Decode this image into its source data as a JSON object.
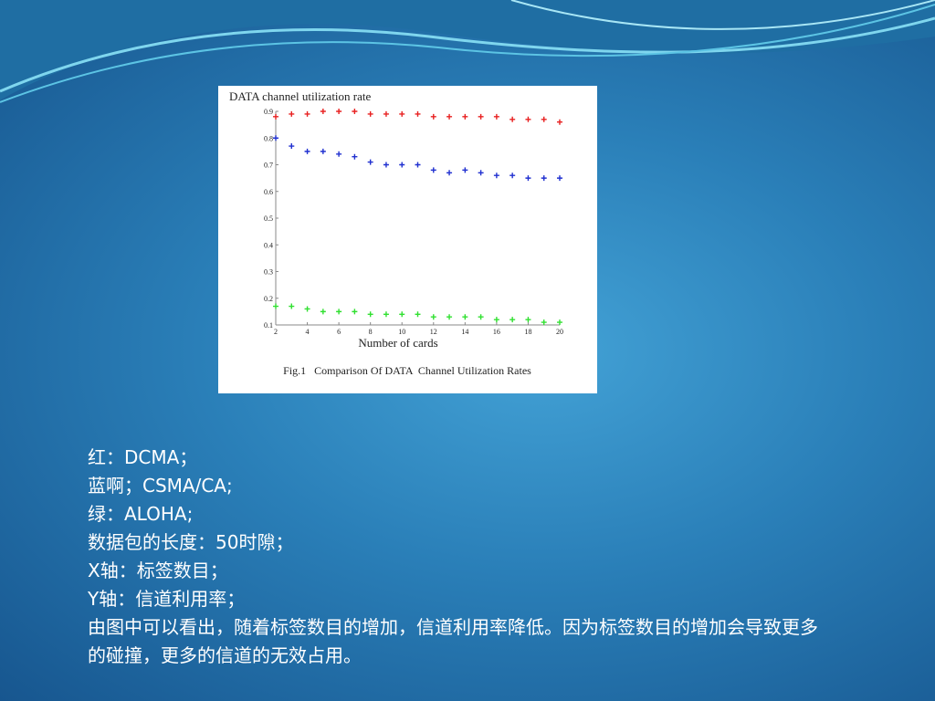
{
  "chart_data": {
    "type": "scatter",
    "title": "DATA channel utilization rate",
    "x_label": "Number of cards",
    "caption": "Fig.1   Comparison Of DATA  Channel Utilization Rates",
    "x": [
      2,
      3,
      4,
      5,
      6,
      7,
      8,
      9,
      10,
      11,
      12,
      13,
      14,
      15,
      16,
      17,
      18,
      19,
      20
    ],
    "series": [
      {
        "color": "#e82020",
        "values": [
          0.88,
          0.89,
          0.89,
          0.9,
          0.9,
          0.9,
          0.89,
          0.89,
          0.89,
          0.89,
          0.88,
          0.88,
          0.88,
          0.88,
          0.88,
          0.87,
          0.87,
          0.87,
          0.86
        ]
      },
      {
        "color": "#2030d0",
        "values": [
          0.8,
          0.77,
          0.75,
          0.75,
          0.74,
          0.73,
          0.71,
          0.7,
          0.7,
          0.7,
          0.68,
          0.67,
          0.68,
          0.67,
          0.66,
          0.66,
          0.65,
          0.65,
          0.65
        ]
      },
      {
        "color": "#30e030",
        "values": [
          0.17,
          0.17,
          0.16,
          0.15,
          0.15,
          0.15,
          0.14,
          0.14,
          0.14,
          0.14,
          0.13,
          0.13,
          0.13,
          0.13,
          0.12,
          0.12,
          0.12,
          0.11,
          0.11
        ]
      }
    ],
    "xlim": [
      2,
      20
    ],
    "xticks": [
      2,
      4,
      6,
      8,
      10,
      12,
      14,
      16,
      18,
      20
    ],
    "ylim": [
      0.1,
      0.9
    ],
    "yticks": [
      0.1,
      0.2,
      0.3,
      0.4,
      0.5,
      0.6,
      0.7,
      0.8,
      0.9
    ]
  },
  "text_lines": [
    "红：DCMA；",
    "蓝啊；CSMA/CA;",
    "绿：ALOHA;",
    "数据包的长度：50时隙；",
    "X轴：标签数目；",
    "Y轴：信道利用率；",
    "由图中可以看出，随着标签数目的增加，信道利用率降低。因为标签数目的增加会导致更多的碰撞，更多的信道的无效占用。"
  ]
}
